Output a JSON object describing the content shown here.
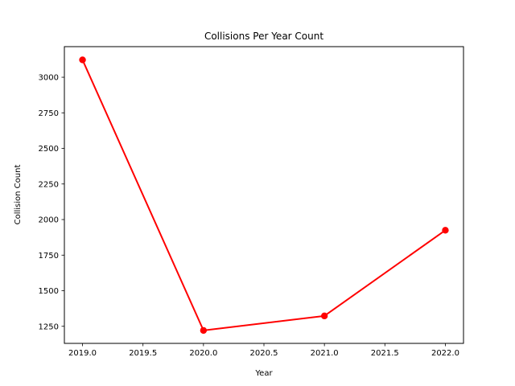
{
  "chart_data": {
    "type": "line",
    "title": "Collisions Per Year Count",
    "xlabel": "Year",
    "ylabel": "Collision Count",
    "x": [
      2019,
      2020,
      2021,
      2022
    ],
    "series": [
      {
        "values": [
          3122,
          1221,
          1323,
          1925
        ],
        "color": "#ff0000",
        "marker": "circle"
      }
    ],
    "xlim": [
      2018.85,
      2022.15
    ],
    "ylim": [
      1130,
      3215
    ],
    "xticks": [
      2019.0,
      2019.5,
      2020.0,
      2020.5,
      2021.0,
      2021.5,
      2022.0
    ],
    "xtick_labels": [
      "2019.0",
      "2019.5",
      "2020.0",
      "2020.5",
      "2021.0",
      "2021.5",
      "2022.0"
    ],
    "yticks": [
      1250,
      1500,
      1750,
      2000,
      2250,
      2500,
      2750,
      3000
    ],
    "ytick_labels": [
      "1250",
      "1500",
      "1750",
      "2000",
      "2250",
      "2500",
      "2750",
      "3000"
    ],
    "grid": false,
    "legend": "none"
  }
}
